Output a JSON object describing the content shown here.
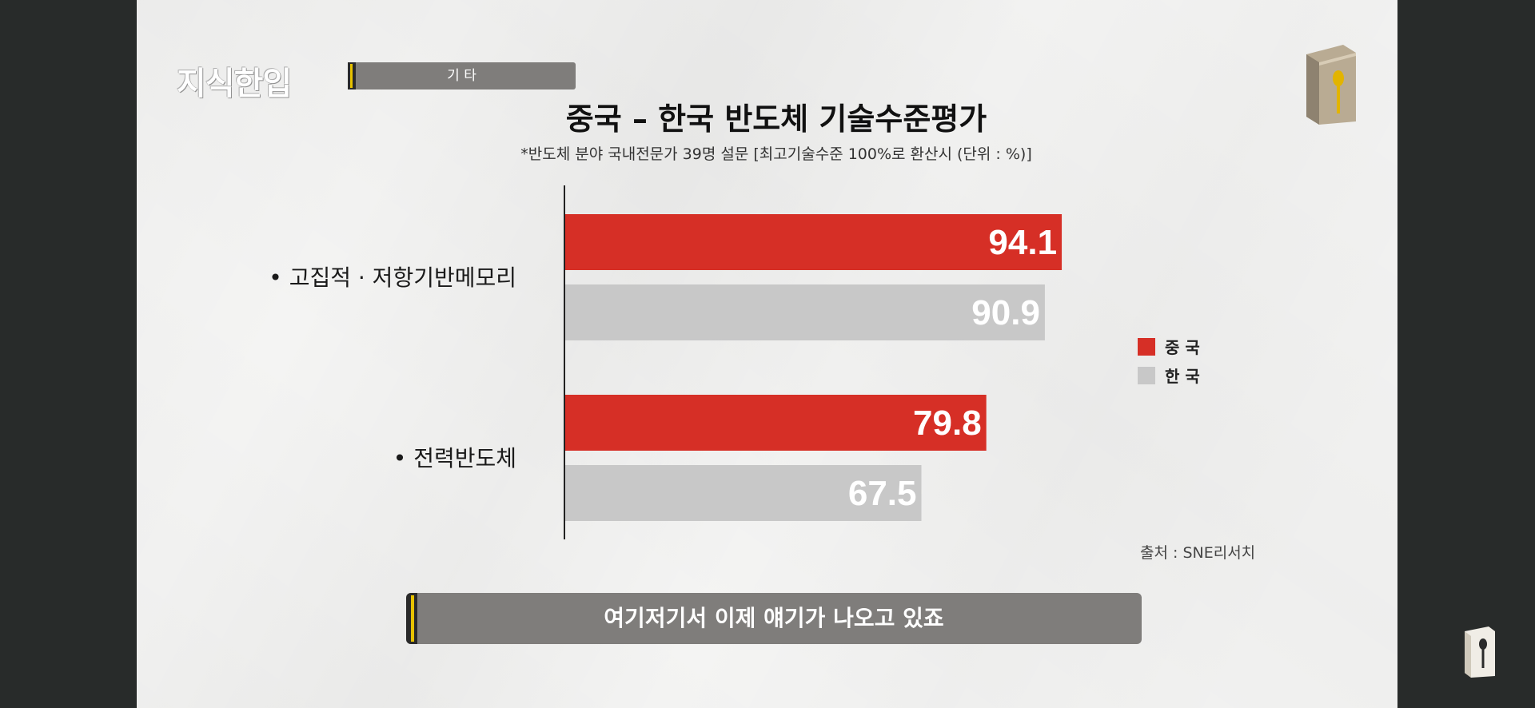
{
  "logo_text": "지식한입",
  "category": "기 타",
  "subtitle_caption": "여기저기서 이제 얘기가 나오고 있죠",
  "source": "출처 : SNE리서치",
  "colors": {
    "china": "#d62f26",
    "korea": "#c8c8c8",
    "accent_stripe": "#e7c200",
    "tag_bg": "#7f7d7b"
  },
  "icons": {
    "top_right": "book-spoon-icon",
    "bottom_right": "book-spoon-icon"
  },
  "chart_data": {
    "type": "bar",
    "orientation": "horizontal",
    "title": "중국 – 한국 반도체 기술수준평가",
    "subtitle": "*반도체 분야 국내전문가 39명 설문 [최고기술수준 100%로 환산시 (단위 : %)]",
    "categories": [
      "• 고집적 · 저항기반메모리",
      "• 전력반도체"
    ],
    "series": [
      {
        "name": "중 국",
        "color": "#d62f26",
        "values": [
          94.1,
          79.8
        ]
      },
      {
        "name": "한 국",
        "color": "#c8c8c8",
        "values": [
          90.9,
          67.5
        ]
      }
    ],
    "xlim": [
      0,
      100
    ],
    "legend": "right",
    "data_labels": true,
    "grid": false
  }
}
